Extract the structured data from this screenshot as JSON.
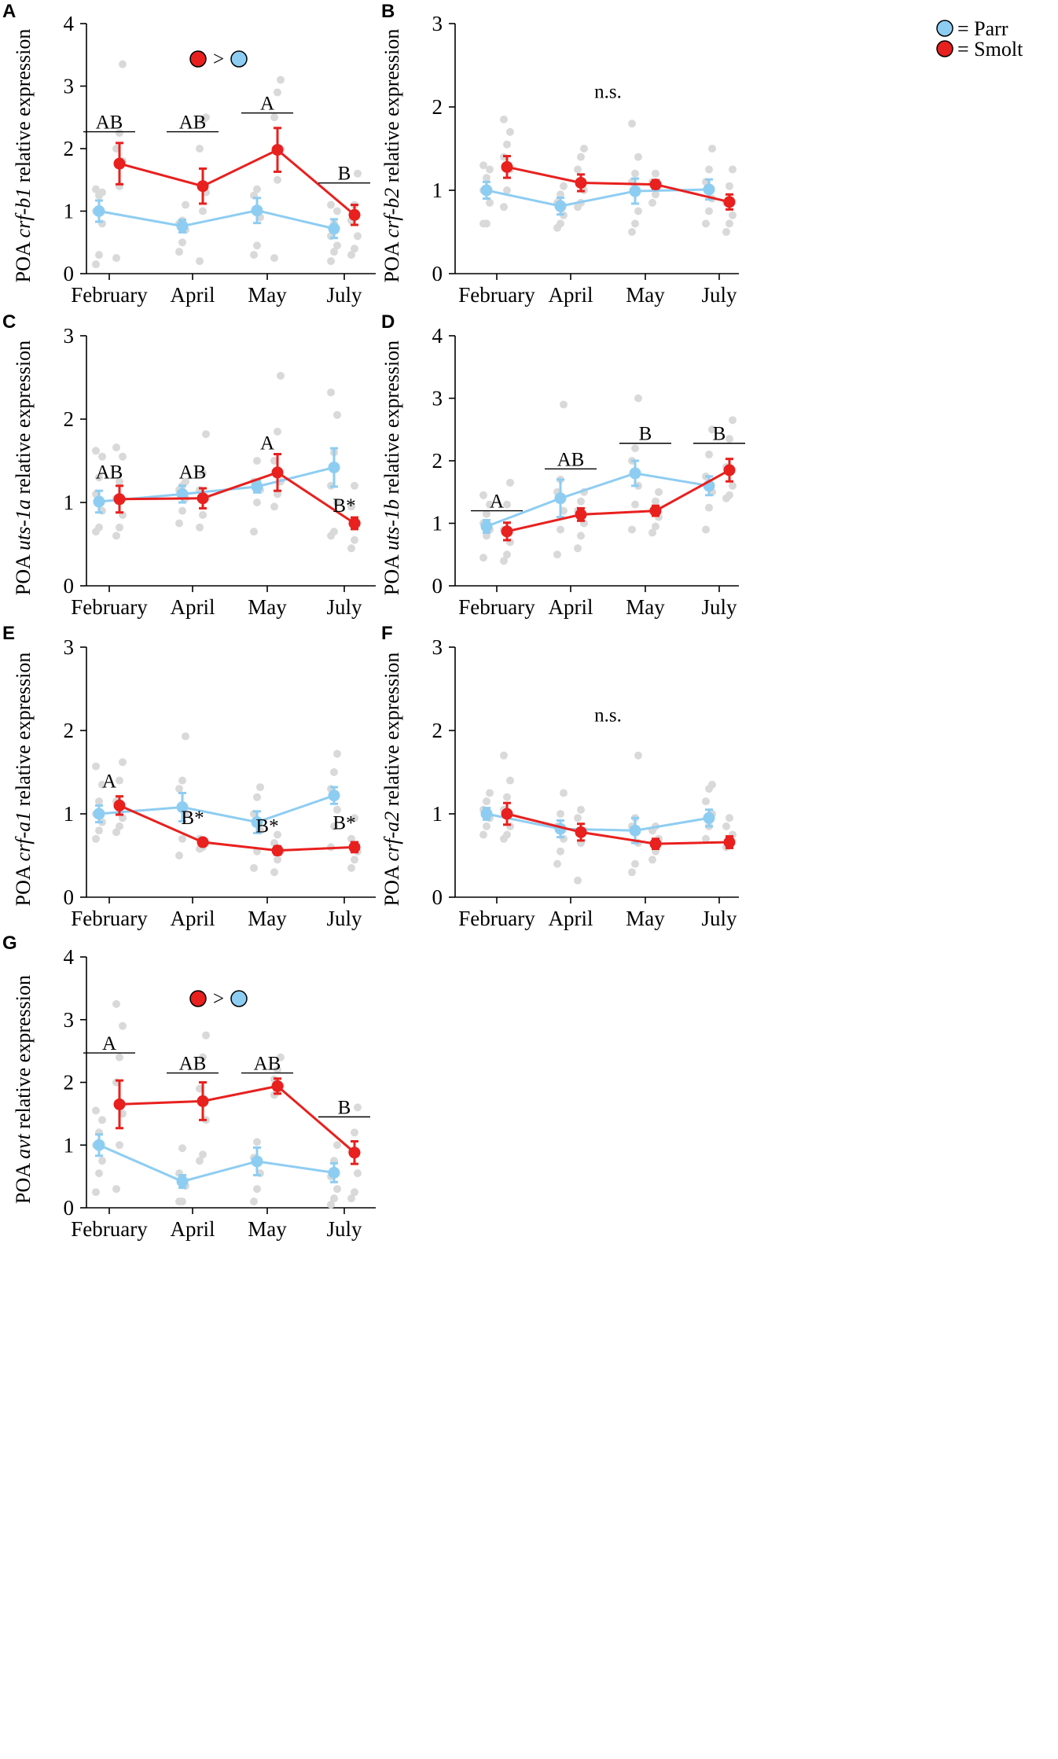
{
  "legend": {
    "parr": "= Parr",
    "smolt": "= Smolt",
    "parr_color": "#8ecdf2",
    "smolt_color": "#e8201e"
  },
  "colors": {
    "dots": "#d9d9d9",
    "axis": "#000000"
  },
  "chart_data": [
    {
      "panel": "A",
      "type": "line",
      "ylabel_prefix": "POA ",
      "ylabel_gene": "crf-b1",
      "ylabel_suffix": " relative expression",
      "categories": [
        "February",
        "April",
        "May",
        "July"
      ],
      "ylim": [
        0,
        4
      ],
      "yticks": [
        0,
        1,
        2,
        3,
        4
      ],
      "series": [
        {
          "name": "Parr",
          "values": [
            1.0,
            0.76,
            1.01,
            0.72
          ],
          "errors": [
            0.17,
            0.1,
            0.2,
            0.15
          ],
          "raw": [
            [
              0.15,
              0.3,
              0.8,
              1.0,
              1.25,
              1.3,
              1.35
            ],
            [
              0.35,
              0.5,
              0.7,
              0.8,
              0.85,
              1.1
            ],
            [
              0.3,
              0.45,
              0.9,
              1.25,
              1.35
            ],
            [
              0.2,
              0.35,
              0.45,
              0.6,
              0.8,
              1.0,
              1.1
            ]
          ]
        },
        {
          "name": "Smolt",
          "values": [
            1.76,
            1.4,
            1.98,
            0.94
          ],
          "errors": [
            0.33,
            0.28,
            0.35,
            0.16
          ],
          "raw": [
            [
              0.25,
              1.4,
              1.8,
              2.0,
              2.25,
              3.35
            ],
            [
              0.2,
              1.0,
              1.3,
              2.0,
              2.45,
              2.5
            ],
            [
              0.25,
              1.5,
              2.0,
              2.5,
              2.9,
              3.1
            ],
            [
              0.3,
              0.4,
              0.6,
              0.85,
              1.1,
              1.6
            ]
          ]
        }
      ],
      "annotations": [
        {
          "text": "AB",
          "x": 0,
          "y": 2.27,
          "bar": true
        },
        {
          "text": "AB",
          "x": 1,
          "y": 2.27,
          "bar": true
        },
        {
          "text": "A",
          "x": 2,
          "y": 2.57,
          "bar": true
        },
        {
          "text": "B",
          "x": 3,
          "y": 1.45,
          "bar": true
        }
      ],
      "topnote": "greater"
    },
    {
      "panel": "B",
      "type": "line",
      "ylabel_prefix": "POA ",
      "ylabel_gene": "crf-b2",
      "ylabel_suffix": " relative expression",
      "categories": [
        "February",
        "April",
        "May",
        "July"
      ],
      "ylim": [
        0,
        3
      ],
      "yticks": [
        0,
        1,
        2,
        3
      ],
      "series": [
        {
          "name": "Parr",
          "values": [
            1.0,
            0.81,
            0.99,
            1.01
          ],
          "errors": [
            0.1,
            0.1,
            0.15,
            0.12
          ],
          "raw": [
            [
              0.6,
              0.6,
              0.85,
              1.0,
              1.15,
              1.25,
              1.3
            ],
            [
              0.55,
              0.6,
              0.7,
              0.85,
              0.95,
              1.05
            ],
            [
              0.5,
              0.6,
              0.75,
              1.1,
              1.2,
              1.4,
              1.8
            ],
            [
              0.6,
              0.75,
              0.9,
              1.1,
              1.25,
              1.5
            ]
          ]
        },
        {
          "name": "Smolt",
          "values": [
            1.28,
            1.09,
            1.07,
            0.86
          ],
          "errors": [
            0.13,
            0.1,
            0.05,
            0.09
          ],
          "raw": [
            [
              0.8,
              1.0,
              1.25,
              1.4,
              1.55,
              1.7,
              1.85
            ],
            [
              0.8,
              0.85,
              1.0,
              1.25,
              1.4,
              1.5
            ],
            [
              0.85,
              0.95,
              1.05,
              1.1,
              1.2
            ],
            [
              0.5,
              0.6,
              0.7,
              0.85,
              1.05,
              1.25
            ]
          ]
        }
      ],
      "annotations": [
        {
          "text": "n.s.",
          "x": 1.5,
          "y": 2.07,
          "bar": false
        }
      ],
      "legend": true
    },
    {
      "panel": "C",
      "type": "line",
      "ylabel_prefix": "POA ",
      "ylabel_gene": "uts-1a",
      "ylabel_suffix": " relative expression",
      "categories": [
        "February",
        "April",
        "May",
        "July"
      ],
      "ylim": [
        0,
        3
      ],
      "yticks": [
        0,
        1,
        2,
        3
      ],
      "series": [
        {
          "name": "Parr",
          "values": [
            1.01,
            1.1,
            1.19,
            1.42
          ],
          "errors": [
            0.13,
            0.1,
            0.07,
            0.23
          ],
          "raw": [
            [
              0.65,
              0.7,
              0.9,
              1.1,
              1.3,
              1.55,
              1.62
            ],
            [
              0.75,
              0.9,
              1.05,
              1.15,
              1.2,
              1.25
            ],
            [
              0.65,
              1.0,
              1.15,
              1.25,
              1.5
            ],
            [
              0.6,
              0.65,
              1.0,
              1.2,
              1.6,
              2.05,
              2.32
            ]
          ]
        },
        {
          "name": "Smolt",
          "values": [
            1.04,
            1.05,
            1.36,
            0.75
          ],
          "errors": [
            0.16,
            0.12,
            0.22,
            0.07
          ],
          "raw": [
            [
              0.6,
              0.7,
              0.85,
              1.05,
              1.25,
              1.55,
              1.66
            ],
            [
              0.7,
              0.85,
              1.05,
              1.15,
              1.35,
              1.82
            ],
            [
              0.95,
              1.1,
              1.25,
              1.5,
              1.85,
              2.52
            ],
            [
              0.45,
              0.55,
              0.75,
              0.95,
              1.2
            ]
          ]
        }
      ],
      "annotations": [
        {
          "text": "AB",
          "x": 0,
          "y": 1.25,
          "bar": false
        },
        {
          "text": "AB",
          "x": 1,
          "y": 1.25,
          "bar": false
        },
        {
          "text": "A",
          "x": 2,
          "y": 1.6,
          "bar": false
        },
        {
          "text": "B*",
          "x": 3,
          "y": 0.85,
          "bar": false
        }
      ]
    },
    {
      "panel": "D",
      "type": "line",
      "ylabel_prefix": "POA ",
      "ylabel_gene": "uts-1b",
      "ylabel_suffix": " relative expression",
      "categories": [
        "February",
        "April",
        "May",
        "July"
      ],
      "ylim": [
        0,
        4
      ],
      "yticks": [
        0,
        1,
        2,
        3,
        4
      ],
      "series": [
        {
          "name": "Parr",
          "values": [
            0.95,
            1.4,
            1.8,
            1.6
          ],
          "errors": [
            0.1,
            0.3,
            0.2,
            0.15
          ],
          "raw": [
            [
              0.45,
              0.8,
              0.9,
              1.0,
              1.15,
              1.3,
              1.45
            ],
            [
              0.5,
              0.9,
              1.2,
              1.5,
              1.7,
              2.9
            ],
            [
              0.9,
              1.3,
              1.6,
              2.0,
              2.2,
              3.0
            ],
            [
              0.9,
              1.25,
              1.5,
              1.75,
              2.1,
              2.5
            ]
          ]
        },
        {
          "name": "Smolt",
          "values": [
            0.87,
            1.14,
            1.2,
            1.85
          ],
          "errors": [
            0.14,
            0.1,
            0.08,
            0.18
          ],
          "raw": [
            [
              0.4,
              0.5,
              0.7,
              0.9,
              1.3,
              1.65
            ],
            [
              0.6,
              0.8,
              1.0,
              1.2,
              1.35,
              1.5
            ],
            [
              0.85,
              0.95,
              1.1,
              1.2,
              1.35,
              1.5
            ],
            [
              1.4,
              1.45,
              1.6,
              1.9,
              2.35,
              2.65
            ]
          ]
        }
      ],
      "annotations": [
        {
          "text": "A",
          "x": 0,
          "y": 1.2,
          "bar": true
        },
        {
          "text": "AB",
          "x": 1,
          "y": 1.87,
          "bar": true
        },
        {
          "text": "B",
          "x": 2,
          "y": 2.28,
          "bar": true
        },
        {
          "text": "B",
          "x": 3,
          "y": 2.28,
          "bar": true
        }
      ]
    },
    {
      "panel": "E",
      "type": "line",
      "ylabel_prefix": "POA ",
      "ylabel_gene": "crf-a1",
      "ylabel_suffix": " relative expression",
      "categories": [
        "February",
        "April",
        "May",
        "July"
      ],
      "ylim": [
        0,
        3
      ],
      "yticks": [
        0,
        1,
        2,
        3
      ],
      "series": [
        {
          "name": "Parr",
          "values": [
            1.0,
            1.08,
            0.9,
            1.22
          ],
          "errors": [
            0.1,
            0.17,
            0.13,
            0.1
          ],
          "raw": [
            [
              0.7,
              0.8,
              0.9,
              1.0,
              1.15,
              1.35,
              1.57
            ],
            [
              0.5,
              0.7,
              1.0,
              1.3,
              1.4,
              1.93
            ],
            [
              0.35,
              0.55,
              0.8,
              1.0,
              1.2,
              1.32
            ],
            [
              0.6,
              0.85,
              1.05,
              1.3,
              1.5,
              1.72
            ]
          ]
        },
        {
          "name": "Smolt",
          "values": [
            1.1,
            0.66,
            0.56,
            0.6
          ],
          "errors": [
            0.11,
            0.03,
            0.05,
            0.06
          ],
          "raw": [
            [
              0.78,
              0.85,
              0.95,
              1.15,
              1.4,
              1.62
            ],
            [
              0.58,
              0.6,
              0.65,
              0.7
            ],
            [
              0.3,
              0.45,
              0.55,
              0.65,
              0.75
            ],
            [
              0.35,
              0.45,
              0.55,
              0.7,
              0.95
            ]
          ]
        }
      ],
      "annotations": [
        {
          "text": "A",
          "x": 0,
          "y": 1.28,
          "bar": false
        },
        {
          "text": "B*",
          "x": 1,
          "y": 0.84,
          "bar": false
        },
        {
          "text": "B*",
          "x": 2,
          "y": 0.74,
          "bar": false
        },
        {
          "text": "B*",
          "x": 3,
          "y": 0.78,
          "bar": false
        }
      ]
    },
    {
      "panel": "F",
      "type": "line",
      "ylabel_prefix": "POA ",
      "ylabel_gene": "crf-a2",
      "ylabel_suffix": " relative expression",
      "categories": [
        "February",
        "April",
        "May",
        "July"
      ],
      "ylim": [
        0,
        3
      ],
      "yticks": [
        0,
        1,
        2,
        3
      ],
      "series": [
        {
          "name": "Parr",
          "values": [
            1.0,
            0.82,
            0.8,
            0.95
          ],
          "errors": [
            0.07,
            0.1,
            0.15,
            0.1
          ],
          "raw": [
            [
              0.75,
              0.85,
              0.95,
              1.05,
              1.15,
              1.25
            ],
            [
              0.4,
              0.55,
              0.7,
              0.85,
              1.0,
              1.25
            ],
            [
              0.3,
              0.4,
              0.65,
              0.85,
              0.95,
              1.7
            ],
            [
              0.7,
              0.85,
              1.0,
              1.15,
              1.3,
              1.35
            ]
          ]
        },
        {
          "name": "Smolt",
          "values": [
            1.0,
            0.78,
            0.64,
            0.66
          ],
          "errors": [
            0.13,
            0.1,
            0.06,
            0.07
          ],
          "raw": [
            [
              0.7,
              0.75,
              0.85,
              1.05,
              1.2,
              1.4,
              1.7
            ],
            [
              0.2,
              0.65,
              0.8,
              0.95,
              1.05
            ],
            [
              0.45,
              0.55,
              0.7,
              0.8,
              0.85
            ],
            [
              0.6,
              0.65,
              0.75,
              0.85,
              0.95
            ]
          ]
        }
      ],
      "annotations": [
        {
          "text": "n.s.",
          "x": 1.5,
          "y": 2.07,
          "bar": false
        }
      ]
    },
    {
      "panel": "G",
      "type": "line",
      "ylabel_prefix": "POA ",
      "ylabel_gene": "avt",
      "ylabel_suffix": " relative expression",
      "categories": [
        "February",
        "April",
        "May",
        "July"
      ],
      "ylim": [
        0,
        4
      ],
      "yticks": [
        0,
        1,
        2,
        3,
        4
      ],
      "series": [
        {
          "name": "Parr",
          "values": [
            1.0,
            0.42,
            0.74,
            0.56
          ],
          "errors": [
            0.17,
            0.1,
            0.22,
            0.15
          ],
          "raw": [
            [
              0.25,
              0.55,
              0.75,
              1.0,
              1.2,
              1.4,
              1.55
            ],
            [
              0.1,
              0.1,
              0.35,
              0.55,
              0.95
            ],
            [
              0.1,
              0.3,
              0.55,
              0.8,
              1.05
            ],
            [
              0.05,
              0.15,
              0.3,
              0.5,
              0.75,
              1.0
            ]
          ]
        },
        {
          "name": "Smolt",
          "values": [
            1.65,
            1.7,
            1.94,
            0.88
          ],
          "errors": [
            0.38,
            0.3,
            0.12,
            0.18
          ],
          "raw": [
            [
              0.3,
              1.0,
              1.5,
              2.0,
              2.4,
              2.9,
              3.25
            ],
            [
              0.75,
              0.85,
              1.4,
              1.9,
              2.4,
              2.75
            ],
            [
              1.8,
              1.85,
              1.95,
              2.05,
              2.2,
              2.4
            ],
            [
              0.15,
              0.25,
              0.55,
              0.9,
              1.2,
              1.6
            ]
          ]
        }
      ],
      "annotations": [
        {
          "text": "A",
          "x": 0,
          "y": 2.47,
          "bar": true
        },
        {
          "text": "AB",
          "x": 1,
          "y": 2.15,
          "bar": true
        },
        {
          "text": "AB",
          "x": 2,
          "y": 2.15,
          "bar": true
        },
        {
          "text": "B",
          "x": 3,
          "y": 1.45,
          "bar": true
        }
      ],
      "topnote": "greater"
    }
  ],
  "topnote_symbol": ">"
}
